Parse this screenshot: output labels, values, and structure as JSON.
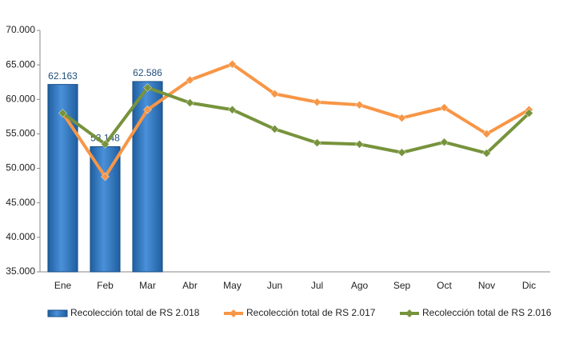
{
  "chart_data": {
    "type": "bar",
    "categories": [
      "Ene",
      "Feb",
      "Mar",
      "Abr",
      "May",
      "Jun",
      "Jul",
      "Ago",
      "Sep",
      "Oct",
      "Nov",
      "Dic"
    ],
    "series": [
      {
        "name": "Recolección total de RS 2.018",
        "type": "bar",
        "color": "#2e75b6",
        "values": [
          62163,
          53148,
          62586,
          null,
          null,
          null,
          null,
          null,
          null,
          null,
          null,
          null
        ],
        "value_labels": [
          "62.163",
          "53.148",
          "62.586",
          null,
          null,
          null,
          null,
          null,
          null,
          null,
          null,
          null
        ]
      },
      {
        "name": "Recolección total de RS 2.017",
        "type": "line",
        "color": "#f79646",
        "values": [
          58000,
          48800,
          58500,
          62800,
          65100,
          60800,
          59600,
          59200,
          57300,
          58800,
          55000,
          58500
        ]
      },
      {
        "name": "Recolección total de RS 2.016",
        "type": "line",
        "color": "#77933c",
        "values": [
          58000,
          53500,
          61700,
          59500,
          58500,
          55700,
          53700,
          53500,
          52300,
          53800,
          52200,
          58000
        ]
      }
    ],
    "ylim": [
      35000,
      70000
    ],
    "yticks": [
      {
        "value": 35000,
        "label": "35.000"
      },
      {
        "value": 40000,
        "label": "40.000"
      },
      {
        "value": 45000,
        "label": "45.000"
      },
      {
        "value": 50000,
        "label": "50.000"
      },
      {
        "value": 55000,
        "label": "55.000"
      },
      {
        "value": 60000,
        "label": "60.000"
      },
      {
        "value": 65000,
        "label": "65.000"
      },
      {
        "value": 70000,
        "label": "70.000"
      }
    ],
    "grid": false,
    "legend": "bottom"
  }
}
